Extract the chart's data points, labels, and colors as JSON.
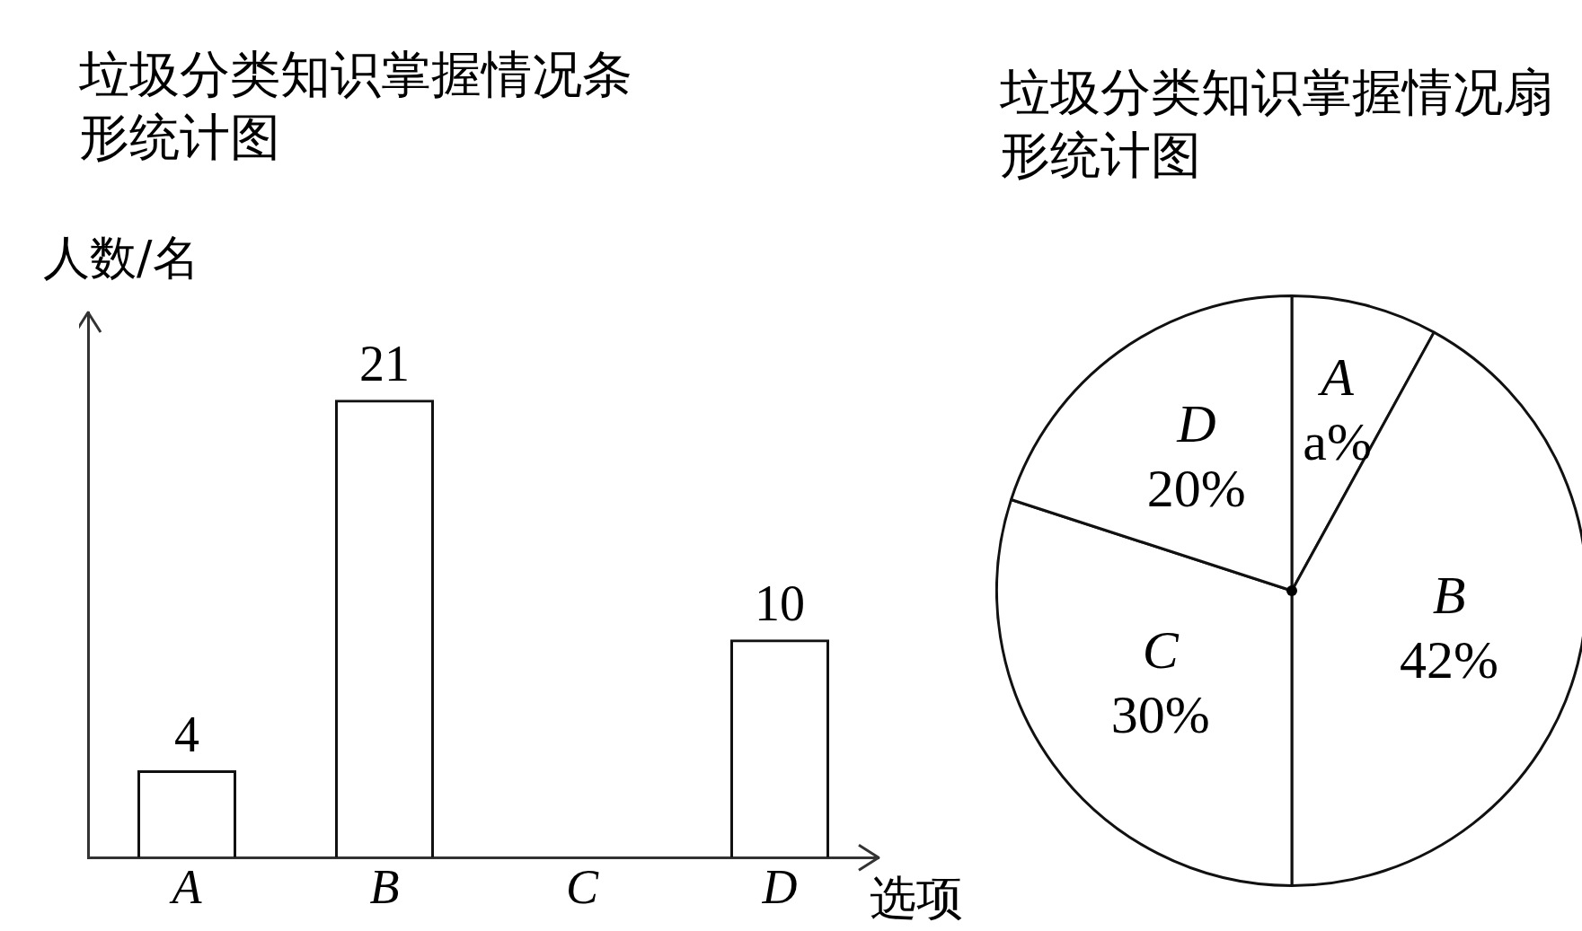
{
  "chart_data": [
    {
      "type": "bar",
      "title": "垃圾分类知识掌握情况条形统计图",
      "ylabel": "人数/名",
      "xlabel": "选项",
      "categories": [
        "A",
        "B",
        "C",
        "D"
      ],
      "values": [
        4,
        21,
        null,
        10
      ],
      "color": "#111111",
      "data_labels": true,
      "tick_labels": "x",
      "grid": false,
      "legend": false
    },
    {
      "type": "pie",
      "title": "垃圾分类知识掌握情况扇形统计图",
      "categories": [
        "A",
        "B",
        "C",
        "D"
      ],
      "values": [
        8,
        42,
        30,
        20
      ],
      "value_labels": [
        "a%",
        "42%",
        "30%",
        "20%"
      ],
      "colors": [
        "#ffffff",
        "#ffffff",
        "#ffffff",
        "#ffffff"
      ],
      "legend": false
    }
  ]
}
